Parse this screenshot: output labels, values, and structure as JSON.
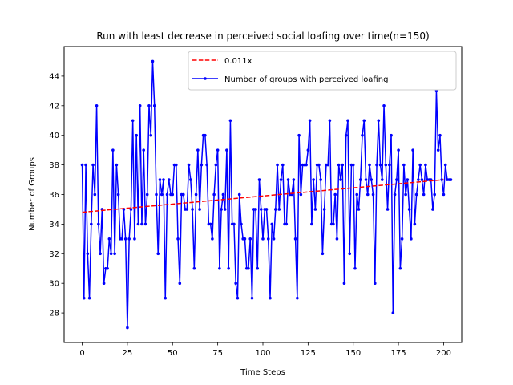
{
  "chart_data": {
    "type": "line",
    "title": "Run with least decrease in perceived social loafing over time(n=150)",
    "xlabel": "Time Steps",
    "ylabel": "Number of Groups",
    "xlim": [
      -10,
      210
    ],
    "ylim": [
      26,
      46
    ],
    "xticks": [
      0,
      25,
      50,
      75,
      100,
      125,
      150,
      175,
      200
    ],
    "yticks": [
      28,
      30,
      32,
      34,
      36,
      38,
      40,
      42,
      44
    ],
    "grid": false,
    "legend_position": "upper center",
    "series": [
      {
        "name": "0.011x",
        "kind": "trend",
        "color": "#ff0000",
        "style": "dashed",
        "x_range": [
          0,
          200
        ],
        "start_value": 34.8,
        "end_value": 37.0
      },
      {
        "name": "Number of groups with perceived loafing",
        "kind": "data",
        "color": "#0000ff",
        "style": "solid-with-markers",
        "x_start": 0,
        "x_step": 1,
        "values": [
          38,
          29,
          38,
          32,
          29,
          34,
          38,
          36,
          42,
          34,
          32,
          35,
          30,
          31,
          31,
          33,
          32,
          39,
          32,
          38,
          36,
          33,
          33,
          35,
          33,
          27,
          33,
          35,
          41,
          33,
          40,
          34,
          42,
          34,
          39,
          34,
          36,
          42,
          40,
          45,
          42,
          36,
          32,
          37,
          36,
          37,
          29,
          36,
          37,
          36,
          36,
          38,
          38,
          33,
          30,
          36,
          36,
          35,
          35,
          38,
          37,
          35,
          31,
          36,
          39,
          35,
          38,
          40,
          40,
          38,
          34,
          34,
          33,
          36,
          38,
          39,
          31,
          35,
          36,
          35,
          39,
          31,
          41,
          34,
          34,
          30,
          29,
          36,
          34,
          33,
          33,
          31,
          31,
          33,
          29,
          35,
          35,
          31,
          37,
          35,
          33,
          35,
          35,
          33,
          29,
          34,
          33,
          35,
          38,
          35,
          37,
          38,
          34,
          34,
          37,
          36,
          36,
          37,
          33,
          29,
          40,
          36,
          38,
          38,
          38,
          39,
          41,
          34,
          37,
          35,
          38,
          38,
          37,
          32,
          35,
          38,
          38,
          41,
          34,
          34,
          36,
          33,
          38,
          37,
          38,
          30,
          40,
          41,
          32,
          38,
          38,
          31,
          36,
          35,
          37,
          40,
          41,
          37,
          36,
          38,
          37,
          36,
          30,
          38,
          41,
          38,
          37,
          42,
          38,
          35,
          38,
          40,
          28,
          36,
          37,
          39,
          31,
          33,
          38,
          36,
          37,
          35,
          33,
          39,
          34,
          36,
          37,
          38,
          37,
          36,
          38,
          37,
          37,
          37,
          35,
          36,
          43,
          39,
          40,
          37,
          36,
          38,
          37,
          37,
          37
        ]
      }
    ]
  }
}
